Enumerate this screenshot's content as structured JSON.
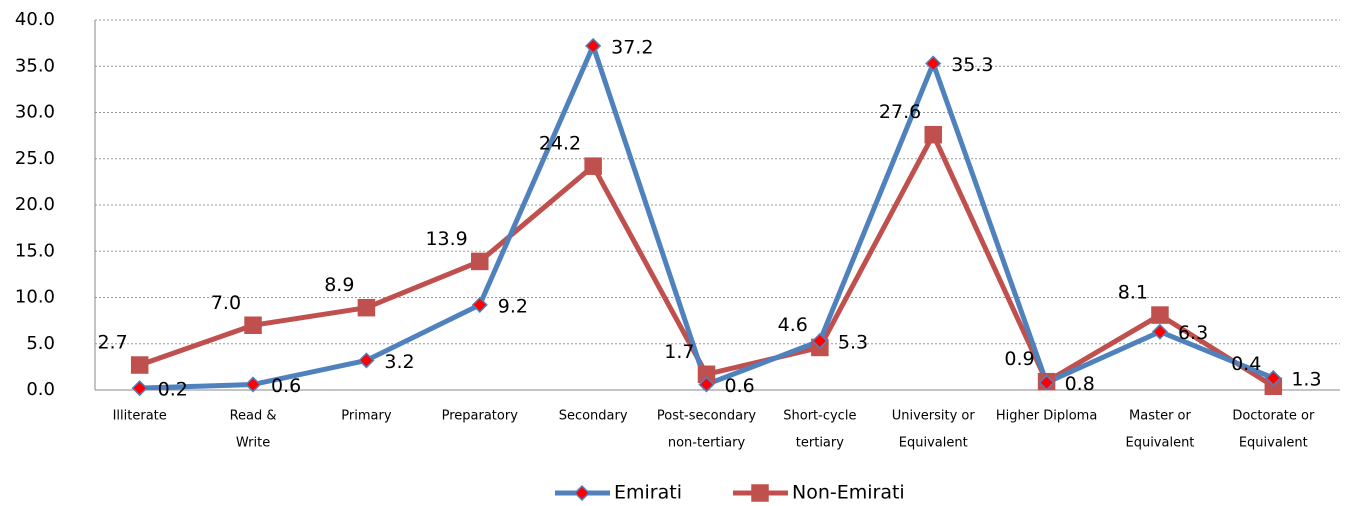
{
  "chart_data": {
    "type": "line",
    "categories": [
      [
        "Illiterate"
      ],
      [
        "Read &",
        "Write"
      ],
      [
        "Primary"
      ],
      [
        "Preparatory"
      ],
      [
        "Secondary"
      ],
      [
        "Post-secondary",
        "non-tertiary"
      ],
      [
        "Short-cycle",
        "tertiary"
      ],
      [
        "University  or",
        "Equivalent"
      ],
      [
        "Higher Diploma"
      ],
      [
        "Master or",
        "Equivalent"
      ],
      [
        "Doctorate  or",
        "Equivalent"
      ]
    ],
    "series": [
      {
        "name": "Emirati",
        "color": "#4f81bd",
        "marker_color": "#ff0000",
        "marker": "diamond",
        "values": [
          0.2,
          0.6,
          3.2,
          9.2,
          37.2,
          0.6,
          5.3,
          35.3,
          0.8,
          6.3,
          1.3
        ],
        "value_labels": [
          "0.2",
          "0.6",
          "3.2",
          "9.2",
          "37.2",
          "0.6",
          "5.3",
          "35.3",
          "0.8",
          "6.3",
          "1.3"
        ]
      },
      {
        "name": "Non-Emirati",
        "color": "#c0504d",
        "marker_color": "#c0504d",
        "marker": "square",
        "values": [
          2.7,
          7.0,
          8.9,
          13.9,
          24.2,
          1.7,
          4.6,
          27.6,
          0.9,
          8.1,
          0.4
        ],
        "value_labels": [
          "2.7",
          "7.0",
          "8.9",
          "13.9",
          "24.2",
          "1.7",
          "4.6",
          "27.6",
          "0.9",
          "8.1",
          "0.4"
        ]
      }
    ],
    "ylim": [
      0,
      40
    ],
    "yticks": [
      {
        "value": 0,
        "label": "0.0"
      },
      {
        "value": 5,
        "label": "5.0"
      },
      {
        "value": 10,
        "label": "10.0"
      },
      {
        "value": 15,
        "label": "15.0"
      },
      {
        "value": 20,
        "label": "20.0"
      },
      {
        "value": 25,
        "label": "25.0"
      },
      {
        "value": 30,
        "label": "30.0"
      },
      {
        "value": 35,
        "label": "35.0"
      },
      {
        "value": 40,
        "label": "40.0"
      }
    ],
    "grid": true,
    "legend": "bottom"
  }
}
